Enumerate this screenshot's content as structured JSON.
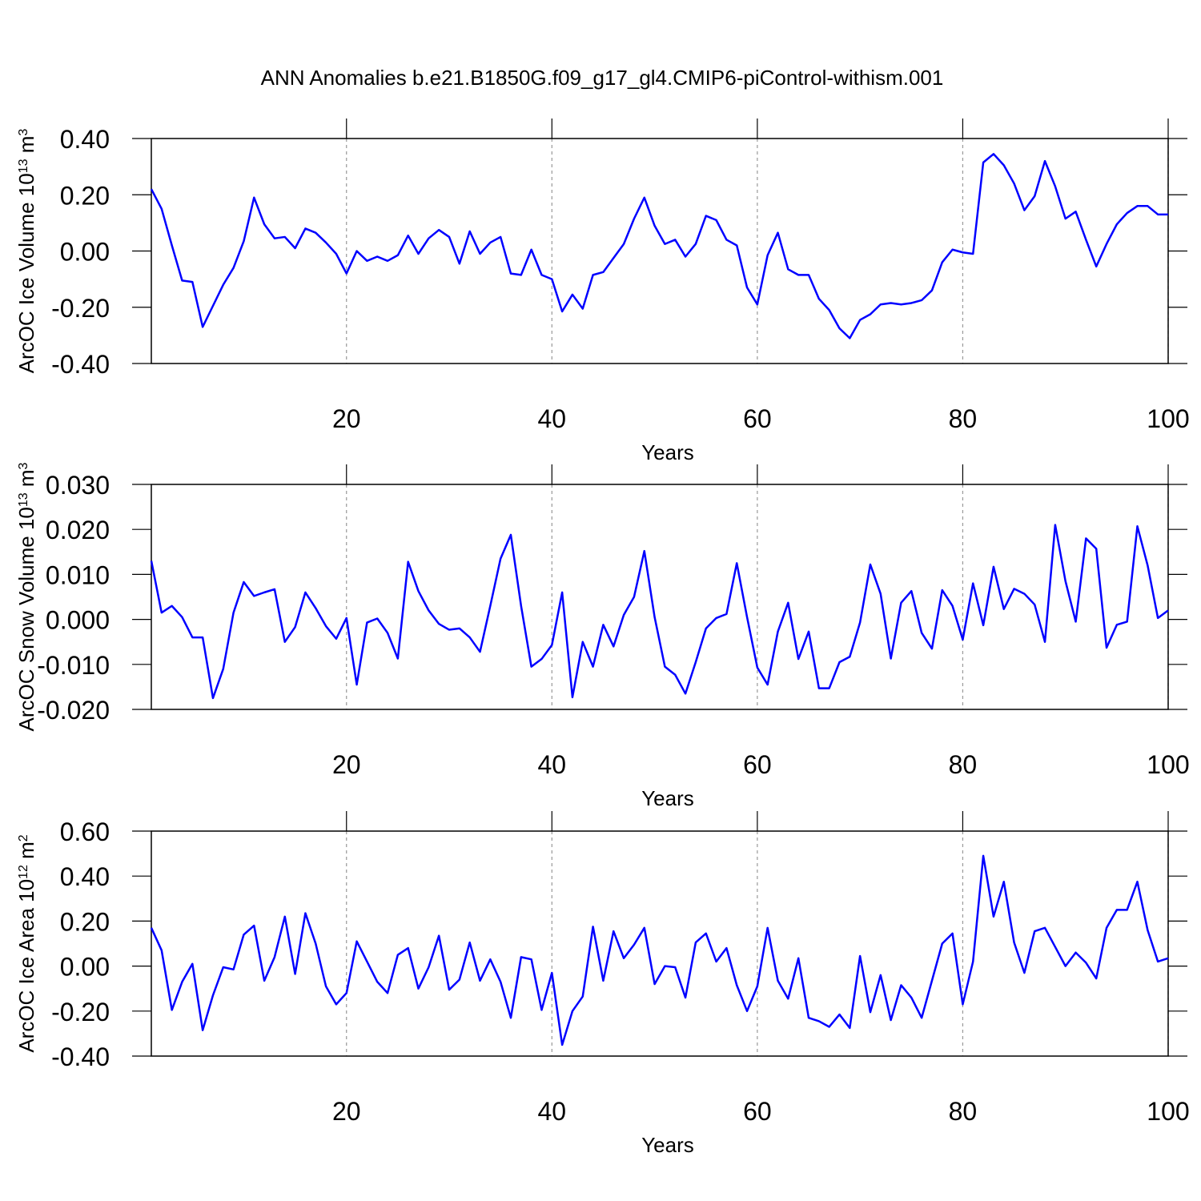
{
  "chart_data": [
    {
      "type": "line",
      "title": "ANN Anomalies b.e21.B1850G.f09_g17_gl4.CMIP6-piControl-withism.001",
      "xlabel": "Years",
      "ylabel": [
        {
          "text": "ArcOC Ice Volume 10"
        },
        {
          "text": "13",
          "sup": true
        },
        {
          "text": " m"
        },
        {
          "text": "3",
          "sup": true
        }
      ],
      "x": [
        1,
        2,
        3,
        4,
        5,
        6,
        7,
        8,
        9,
        10,
        11,
        12,
        13,
        14,
        15,
        16,
        17,
        18,
        19,
        20,
        21,
        22,
        23,
        24,
        25,
        26,
        27,
        28,
        29,
        30,
        31,
        32,
        33,
        34,
        35,
        36,
        37,
        38,
        39,
        40,
        41,
        42,
        43,
        44,
        45,
        46,
        47,
        48,
        49,
        50,
        51,
        52,
        53,
        54,
        55,
        56,
        57,
        58,
        59,
        60,
        61,
        62,
        63,
        64,
        65,
        66,
        67,
        68,
        69,
        70,
        71,
        72,
        73,
        74,
        75,
        76,
        77,
        78,
        79,
        80,
        81,
        82,
        83,
        84,
        85,
        86,
        87,
        88,
        89,
        90,
        91,
        92,
        93,
        94,
        95,
        96,
        97,
        98,
        99,
        100
      ],
      "series": [
        {
          "color": "#0000ff",
          "values": [
            0.22,
            0.15,
            0.02,
            -0.105,
            -0.11,
            -0.27,
            -0.195,
            -0.12,
            -0.06,
            0.035,
            0.19,
            0.095,
            0.045,
            0.05,
            0.01,
            0.08,
            0.065,
            0.03,
            -0.01,
            -0.08,
            0.0,
            -0.035,
            -0.02,
            -0.035,
            -0.015,
            0.055,
            -0.01,
            0.045,
            0.075,
            0.05,
            -0.045,
            0.07,
            -0.01,
            0.03,
            0.05,
            -0.08,
            -0.085,
            0.005,
            -0.085,
            -0.1,
            -0.215,
            -0.155,
            -0.205,
            -0.085,
            -0.075,
            -0.025,
            0.025,
            0.115,
            0.19,
            0.09,
            0.025,
            0.04,
            -0.02,
            0.025,
            0.125,
            0.11,
            0.04,
            0.02,
            -0.13,
            -0.19,
            -0.015,
            0.065,
            -0.065,
            -0.085,
            -0.085,
            -0.17,
            -0.21,
            -0.275,
            -0.31,
            -0.245,
            -0.225,
            -0.19,
            -0.185,
            -0.19,
            -0.185,
            -0.175,
            -0.14,
            -0.04,
            0.005,
            -0.005,
            -0.01,
            0.315,
            0.345,
            0.305,
            0.24,
            0.145,
            0.195,
            0.32,
            0.23,
            0.115,
            0.14,
            0.04,
            -0.055,
            0.025,
            0.095,
            0.135,
            0.16,
            0.16,
            0.13,
            0.13
          ]
        }
      ],
      "xlim": [
        1,
        100
      ],
      "xticks": [
        20,
        40,
        60,
        80,
        100
      ],
      "ylim": [
        -0.4,
        0.4
      ],
      "yticks": [
        {
          "value": -0.4,
          "label": "-0.40"
        },
        {
          "value": -0.2,
          "label": "-0.20"
        },
        {
          "value": 0,
          "label": "0.00"
        },
        {
          "value": 0.2,
          "label": "0.20"
        },
        {
          "value": 0.4,
          "label": "0.40"
        }
      ],
      "xgrid": true
    },
    {
      "type": "line",
      "xlabel": "Years",
      "ylabel": [
        {
          "text": "ArcOC Snow Volume 10"
        },
        {
          "text": "13",
          "sup": true
        },
        {
          "text": " m"
        },
        {
          "text": "3",
          "sup": true
        }
      ],
      "x": [
        1,
        2,
        3,
        4,
        5,
        6,
        7,
        8,
        9,
        10,
        11,
        12,
        13,
        14,
        15,
        16,
        17,
        18,
        19,
        20,
        21,
        22,
        23,
        24,
        25,
        26,
        27,
        28,
        29,
        30,
        31,
        32,
        33,
        34,
        35,
        36,
        37,
        38,
        39,
        40,
        41,
        42,
        43,
        44,
        45,
        46,
        47,
        48,
        49,
        50,
        51,
        52,
        53,
        54,
        55,
        56,
        57,
        58,
        59,
        60,
        61,
        62,
        63,
        64,
        65,
        66,
        67,
        68,
        69,
        70,
        71,
        72,
        73,
        74,
        75,
        76,
        77,
        78,
        79,
        80,
        81,
        82,
        83,
        84,
        85,
        86,
        87,
        88,
        89,
        90,
        91,
        92,
        93,
        94,
        95,
        96,
        97,
        98,
        99,
        100
      ],
      "series": [
        {
          "color": "#0000ff",
          "values": [
            0.013,
            0.0015,
            0.003,
            0.0005,
            -0.004,
            -0.004,
            -0.0175,
            -0.011,
            0.0015,
            0.0083,
            0.0052,
            0.006,
            0.0067,
            -0.005,
            -0.0017,
            0.006,
            0.0025,
            -0.0015,
            -0.0043,
            0.0003,
            -0.0145,
            -0.0007,
            0.0002,
            -0.003,
            -0.0087,
            0.0128,
            0.0063,
            0.002,
            -0.001,
            -0.0023,
            -0.002,
            -0.004,
            -0.0072,
            0.003,
            0.0135,
            0.0188,
            0.003,
            -0.0105,
            -0.0088,
            -0.0057,
            0.006,
            -0.0173,
            -0.005,
            -0.0105,
            -0.0012,
            -0.006,
            0.001,
            0.005,
            0.0152,
            0.0005,
            -0.0105,
            -0.0123,
            -0.0165,
            -0.0095,
            -0.002,
            0.0003,
            0.0012,
            0.0125,
            0.0005,
            -0.0107,
            -0.0145,
            -0.0027,
            0.0037,
            -0.0088,
            -0.0027,
            -0.0153,
            -0.0153,
            -0.0095,
            -0.0083,
            -0.0007,
            0.0122,
            0.0057,
            -0.0087,
            0.0037,
            0.0063,
            -0.003,
            -0.0065,
            0.0065,
            0.003,
            -0.0045,
            0.008,
            -0.0013,
            0.0117,
            0.0023,
            0.0068,
            0.0057,
            0.0033,
            -0.005,
            0.021,
            0.0085,
            -0.0005,
            0.018,
            0.0157,
            -0.0063,
            -0.0012,
            -0.0005,
            0.0207,
            0.012,
            0.0003,
            0.002
          ]
        }
      ],
      "xlim": [
        1,
        100
      ],
      "xticks": [
        20,
        40,
        60,
        80,
        100
      ],
      "ylim": [
        -0.02,
        0.03
      ],
      "yticks": [
        {
          "value": -0.02,
          "label": "-0.020"
        },
        {
          "value": -0.01,
          "label": "-0.010"
        },
        {
          "value": 0,
          "label": "0.000"
        },
        {
          "value": 0.01,
          "label": "0.010"
        },
        {
          "value": 0.02,
          "label": "0.020"
        },
        {
          "value": 0.03,
          "label": "0.030"
        }
      ],
      "xgrid": true
    },
    {
      "type": "line",
      "xlabel": "Years",
      "ylabel": [
        {
          "text": "ArcOC Ice Area 10"
        },
        {
          "text": "12",
          "sup": true
        },
        {
          "text": " m"
        },
        {
          "text": "2",
          "sup": true
        }
      ],
      "x": [
        1,
        2,
        3,
        4,
        5,
        6,
        7,
        8,
        9,
        10,
        11,
        12,
        13,
        14,
        15,
        16,
        17,
        18,
        19,
        20,
        21,
        22,
        23,
        24,
        25,
        26,
        27,
        28,
        29,
        30,
        31,
        32,
        33,
        34,
        35,
        36,
        37,
        38,
        39,
        40,
        41,
        42,
        43,
        44,
        45,
        46,
        47,
        48,
        49,
        50,
        51,
        52,
        53,
        54,
        55,
        56,
        57,
        58,
        59,
        60,
        61,
        62,
        63,
        64,
        65,
        66,
        67,
        68,
        69,
        70,
        71,
        72,
        73,
        74,
        75,
        76,
        77,
        78,
        79,
        80,
        81,
        82,
        83,
        84,
        85,
        86,
        87,
        88,
        89,
        90,
        91,
        92,
        93,
        94,
        95,
        96,
        97,
        98,
        99,
        100
      ],
      "series": [
        {
          "color": "#0000ff",
          "values": [
            0.17,
            0.07,
            -0.195,
            -0.07,
            0.01,
            -0.285,
            -0.13,
            -0.005,
            -0.015,
            0.14,
            0.18,
            -0.065,
            0.04,
            0.22,
            -0.035,
            0.235,
            0.1,
            -0.09,
            -0.17,
            -0.12,
            0.11,
            0.02,
            -0.07,
            -0.12,
            0.05,
            0.08,
            -0.1,
            -0.005,
            0.135,
            -0.105,
            -0.06,
            0.105,
            -0.065,
            0.03,
            -0.07,
            -0.23,
            0.04,
            0.03,
            -0.195,
            -0.03,
            -0.35,
            -0.2,
            -0.135,
            0.175,
            -0.065,
            0.155,
            0.035,
            0.095,
            0.17,
            -0.08,
            0.0,
            -0.005,
            -0.14,
            0.105,
            0.145,
            0.02,
            0.08,
            -0.085,
            -0.2,
            -0.09,
            0.17,
            -0.065,
            -0.145,
            0.035,
            -0.23,
            -0.245,
            -0.27,
            -0.215,
            -0.275,
            0.045,
            -0.205,
            -0.04,
            -0.24,
            -0.085,
            -0.14,
            -0.23,
            -0.065,
            0.1,
            0.145,
            -0.17,
            0.02,
            0.49,
            0.22,
            0.375,
            0.105,
            -0.03,
            0.155,
            0.17,
            0.085,
            0.0,
            0.06,
            0.015,
            -0.055,
            0.17,
            0.25,
            0.25,
            0.375,
            0.16,
            0.02,
            0.035
          ]
        }
      ],
      "xlim": [
        1,
        100
      ],
      "xticks": [
        20,
        40,
        60,
        80,
        100
      ],
      "ylim": [
        -0.4,
        0.6
      ],
      "yticks": [
        {
          "value": -0.4,
          "label": "-0.40"
        },
        {
          "value": -0.2,
          "label": "-0.20"
        },
        {
          "value": 0,
          "label": "0.00"
        },
        {
          "value": 0.2,
          "label": "0.20"
        },
        {
          "value": 0.4,
          "label": "0.40"
        },
        {
          "value": 0.6,
          "label": "0.60"
        }
      ],
      "xgrid": true
    }
  ]
}
